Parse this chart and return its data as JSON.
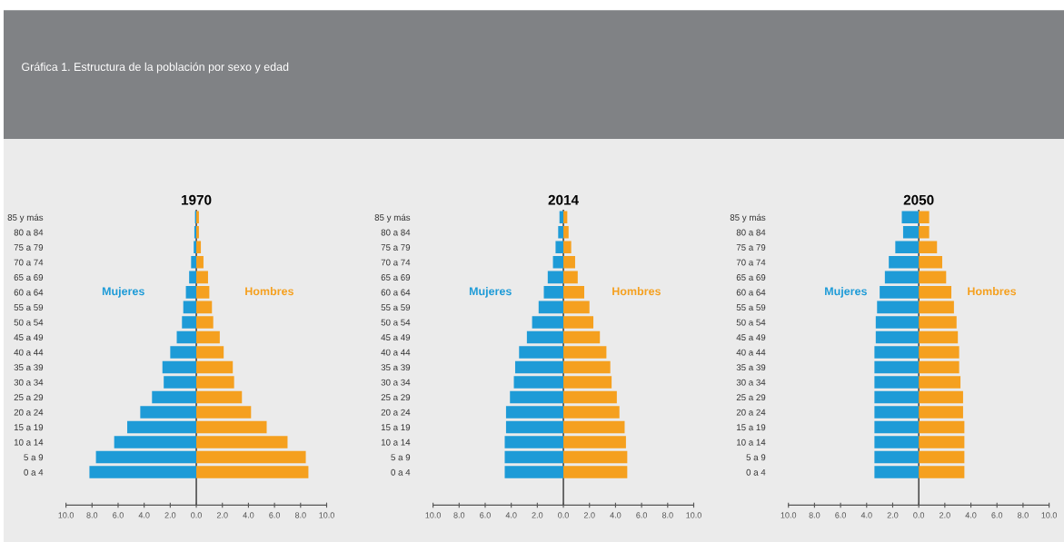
{
  "chart_data": [
    {
      "type": "bar",
      "orientation": "horizontal",
      "stacked": true,
      "title": "1970",
      "annotations": [
        "Gráfica 1. Estructura de la población por sexo y edad"
      ],
      "categories": [
        "85 y más",
        "80 a 84",
        "75 a 79",
        "70 a 74",
        "65 a 69",
        "60 a 64",
        "55 a 59",
        "50 a 54",
        "45 a 49",
        "40 a 44",
        "35 a 39",
        "30 a 34",
        "25 a 29",
        "20 a 24",
        "15 a 19",
        "10 a 14",
        "5 a 9",
        "0 a 4"
      ],
      "series": [
        {
          "name": "Mujeres",
          "color": "#1e9bd7",
          "values": [
            -0.1,
            -0.15,
            -0.2,
            -0.4,
            -0.55,
            -0.8,
            -1.0,
            -1.1,
            -1.5,
            -2.0,
            -2.6,
            -2.5,
            -3.4,
            -4.3,
            -5.3,
            -6.3,
            -7.7,
            -8.2
          ]
        },
        {
          "name": "Hombres",
          "color": "#f5a01f",
          "values": [
            0.2,
            0.2,
            0.35,
            0.55,
            0.9,
            1.0,
            1.2,
            1.3,
            1.8,
            2.1,
            2.8,
            2.9,
            3.5,
            4.2,
            5.4,
            7.0,
            8.4,
            8.6
          ]
        }
      ],
      "xlim": [
        -10,
        10
      ],
      "xticks": [
        {
          "value": -10,
          "label": "10.0"
        },
        {
          "value": -8,
          "label": "8.0"
        },
        {
          "value": -6,
          "label": "6.0"
        },
        {
          "value": -4,
          "label": "4.0"
        },
        {
          "value": -2,
          "label": "2.0"
        },
        {
          "value": 0,
          "label": "0.0"
        },
        {
          "value": 2,
          "label": "2.0"
        },
        {
          "value": 4,
          "label": "4.0"
        },
        {
          "value": 6,
          "label": "6.0"
        },
        {
          "value": 8,
          "label": "8.0"
        },
        {
          "value": 10,
          "label": "10.0"
        }
      ],
      "ref_lines": [
        {
          "axis": "x",
          "value": 0,
          "color": "#333333"
        }
      ],
      "grid": false,
      "legend": false
    },
    {
      "type": "bar",
      "orientation": "horizontal",
      "stacked": true,
      "title": "2014",
      "categories": [
        "85 y más",
        "80 a 84",
        "75 a 79",
        "70 a 74",
        "65 a 69",
        "60 a 64",
        "55 a 59",
        "50 a 54",
        "45 a 49",
        "40 a 44",
        "35 a 39",
        "30 a 34",
        "25 a 29",
        "20 a 24",
        "15 a 19",
        "10 a 14",
        "5 a 9",
        "0 a 4"
      ],
      "series": [
        {
          "name": "Mujeres",
          "color": "#1e9bd7",
          "values": [
            -0.3,
            -0.4,
            -0.6,
            -0.8,
            -1.2,
            -1.5,
            -1.9,
            -2.4,
            -2.8,
            -3.4,
            -3.7,
            -3.8,
            -4.1,
            -4.4,
            -4.4,
            -4.5,
            -4.5,
            -4.5
          ]
        },
        {
          "name": "Hombres",
          "color": "#f5a01f",
          "values": [
            0.3,
            0.4,
            0.6,
            0.9,
            1.1,
            1.6,
            2.0,
            2.3,
            2.8,
            3.3,
            3.6,
            3.7,
            4.1,
            4.3,
            4.7,
            4.8,
            4.9,
            4.9
          ]
        }
      ],
      "xlim": [
        -10,
        10
      ],
      "xticks": [
        {
          "value": -10,
          "label": "10.0"
        },
        {
          "value": -8,
          "label": "8.0"
        },
        {
          "value": -6,
          "label": "6.0"
        },
        {
          "value": -4,
          "label": "4.0"
        },
        {
          "value": -2,
          "label": "2.0"
        },
        {
          "value": 0,
          "label": "0.0"
        },
        {
          "value": 2,
          "label": "2.0"
        },
        {
          "value": 4,
          "label": "4.0"
        },
        {
          "value": 6,
          "label": "6.0"
        },
        {
          "value": 8,
          "label": "8.0"
        },
        {
          "value": 10,
          "label": "10.0"
        }
      ],
      "ref_lines": [
        {
          "axis": "x",
          "value": 0,
          "color": "#333333"
        }
      ],
      "grid": false,
      "legend": false
    },
    {
      "type": "bar",
      "orientation": "horizontal",
      "stacked": true,
      "title": "2050",
      "categories": [
        "85 y más",
        "80 a 84",
        "75 a 79",
        "70 a 74",
        "65 a 69",
        "60 a 64",
        "55 a 59",
        "50 a 54",
        "45 a 49",
        "40 a 44",
        "35 a 39",
        "30 a 34",
        "25 a 29",
        "20 a 24",
        "15 a 19",
        "10 a 14",
        "5 a 9",
        "0 a 4"
      ],
      "series": [
        {
          "name": "Mujeres",
          "color": "#1e9bd7",
          "values": [
            -1.3,
            -1.2,
            -1.8,
            -2.3,
            -2.6,
            -3.0,
            -3.2,
            -3.3,
            -3.3,
            -3.4,
            -3.4,
            -3.4,
            -3.4,
            -3.4,
            -3.4,
            -3.4,
            -3.4,
            -3.4
          ]
        },
        {
          "name": "Hombres",
          "color": "#f5a01f",
          "values": [
            0.8,
            0.8,
            1.4,
            1.8,
            2.1,
            2.5,
            2.7,
            2.9,
            3.0,
            3.1,
            3.1,
            3.2,
            3.4,
            3.4,
            3.5,
            3.5,
            3.5,
            3.5
          ]
        }
      ],
      "xlim": [
        -10,
        10
      ],
      "xticks": [
        {
          "value": -10,
          "label": "10.0"
        },
        {
          "value": -8,
          "label": "8.0"
        },
        {
          "value": -6,
          "label": "6.0"
        },
        {
          "value": -4,
          "label": "4.0"
        },
        {
          "value": -2,
          "label": "2.0"
        },
        {
          "value": 0,
          "label": "0.0"
        },
        {
          "value": 2,
          "label": "2.0"
        },
        {
          "value": 4,
          "label": "4.0"
        },
        {
          "value": 6,
          "label": "6.0"
        },
        {
          "value": 8,
          "label": "8.0"
        },
        {
          "value": 10,
          "label": "10.0"
        }
      ],
      "ref_lines": [
        {
          "axis": "x",
          "value": 0,
          "color": "#333333"
        }
      ],
      "grid": false,
      "legend": false
    }
  ]
}
